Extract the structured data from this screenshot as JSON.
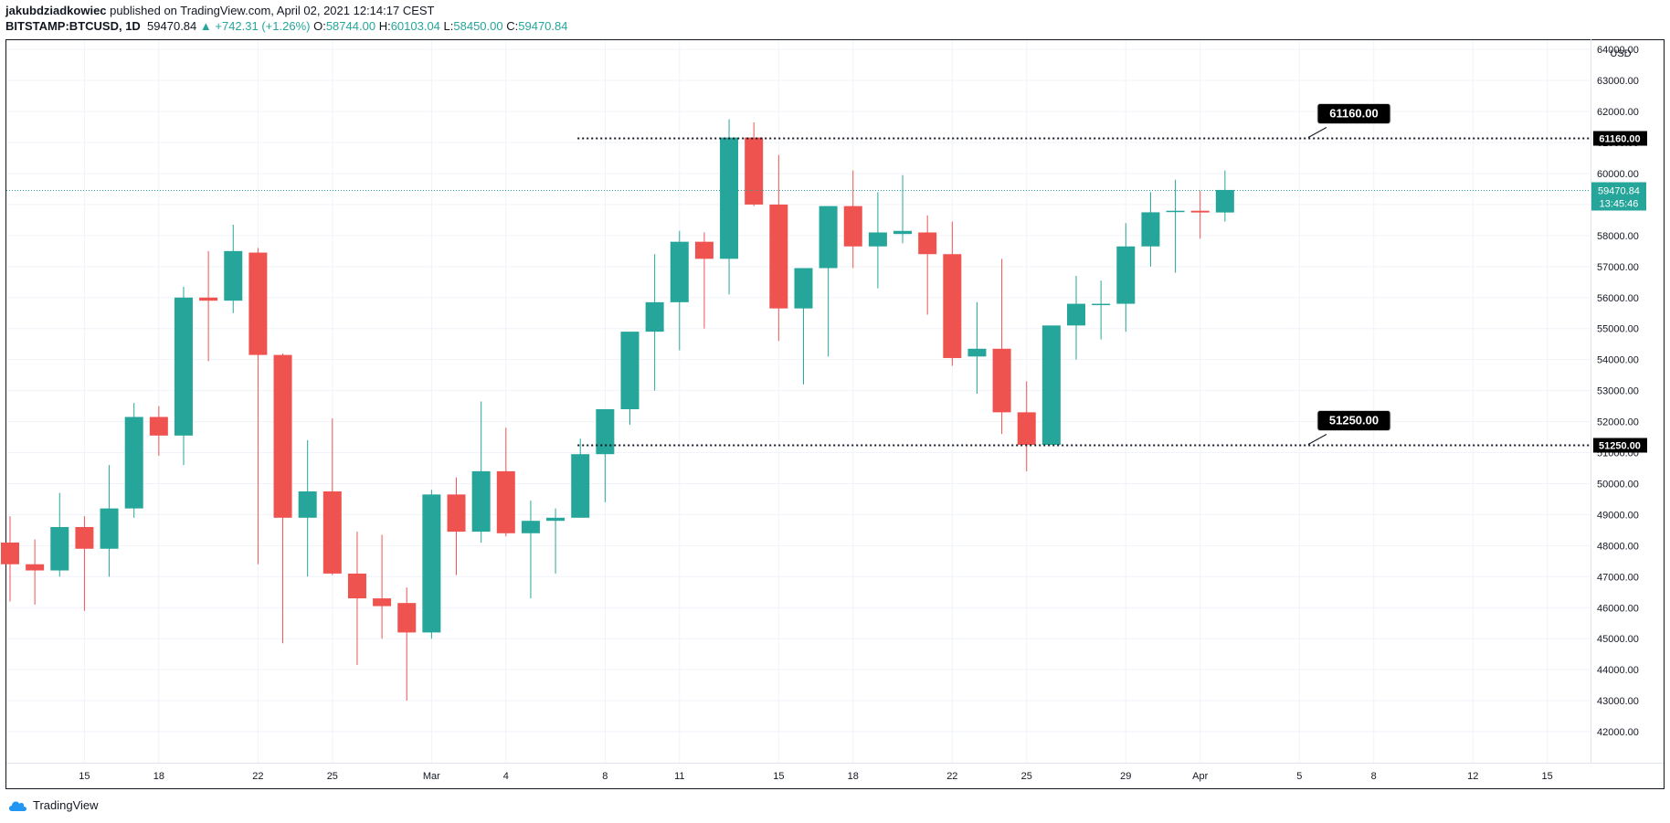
{
  "header": {
    "author": "jakubdziadkowiec",
    "published_text": "published on TradingView.com, April 02, 2021 12:14:17 CEST"
  },
  "ticker": {
    "symbol": "BITSTAMP:BTCUSD, 1D",
    "last": "59470.84",
    "change": "▲ +742.31 (+1.26%)",
    "o_label": "O:",
    "o_value": "58744.00",
    "h_label": "H:",
    "h_value": "60103.04",
    "l_label": "L:",
    "l_value": "58450.00",
    "c_label": "C:",
    "c_value": "59470.84"
  },
  "footer": {
    "brand": "TradingView",
    "logo_icon": "tradingview-cloud-icon"
  },
  "colors": {
    "up": "#26a69a",
    "down": "#ef5350",
    "grid": "#f0f3fa",
    "axis_text": "#131722"
  },
  "chart_data": {
    "type": "candlestick",
    "ylim": [
      41000,
      64300
    ],
    "currency": "USD",
    "y_ticks": [
      42000,
      43000,
      44000,
      45000,
      46000,
      47000,
      48000,
      49000,
      50000,
      51000,
      52000,
      53000,
      54000,
      55000,
      56000,
      57000,
      58000,
      59000,
      60000,
      61000,
      62000,
      63000,
      64000
    ],
    "x_ticks": [
      {
        "label": "15",
        "date": "2021-02-15"
      },
      {
        "label": "18",
        "date": "2021-02-18"
      },
      {
        "label": "22",
        "date": "2021-02-22"
      },
      {
        "label": "25",
        "date": "2021-02-25"
      },
      {
        "label": "Mar",
        "date": "2021-03-01"
      },
      {
        "label": "4",
        "date": "2021-03-04"
      },
      {
        "label": "8",
        "date": "2021-03-08"
      },
      {
        "label": "11",
        "date": "2021-03-11"
      },
      {
        "label": "15",
        "date": "2021-03-15"
      },
      {
        "label": "18",
        "date": "2021-03-18"
      },
      {
        "label": "22",
        "date": "2021-03-22"
      },
      {
        "label": "25",
        "date": "2021-03-25"
      },
      {
        "label": "29",
        "date": "2021-03-29"
      },
      {
        "label": "Apr",
        "date": "2021-04-01"
      },
      {
        "label": "5",
        "date": "2021-04-05"
      },
      {
        "label": "8",
        "date": "2021-04-08"
      },
      {
        "label": "12",
        "date": "2021-04-12"
      },
      {
        "label": "15",
        "date": "2021-04-15"
      }
    ],
    "candles": [
      {
        "date": "2021-02-12",
        "o": 48100,
        "h": 48950,
        "l": 46200,
        "c": 47400
      },
      {
        "date": "2021-02-13",
        "o": 47400,
        "h": 48200,
        "l": 46100,
        "c": 47200
      },
      {
        "date": "2021-02-14",
        "o": 47200,
        "h": 49700,
        "l": 47000,
        "c": 48600
      },
      {
        "date": "2021-02-15",
        "o": 48600,
        "h": 48950,
        "l": 45900,
        "c": 47900
      },
      {
        "date": "2021-02-16",
        "o": 47900,
        "h": 50600,
        "l": 47000,
        "c": 49200
      },
      {
        "date": "2021-02-17",
        "o": 49200,
        "h": 52600,
        "l": 48900,
        "c": 52150
      },
      {
        "date": "2021-02-18",
        "o": 52150,
        "h": 52500,
        "l": 50900,
        "c": 51550
      },
      {
        "date": "2021-02-19",
        "o": 51550,
        "h": 56350,
        "l": 50600,
        "c": 56000
      },
      {
        "date": "2021-02-20",
        "o": 56000,
        "h": 57500,
        "l": 53950,
        "c": 55900
      },
      {
        "date": "2021-02-21",
        "o": 55900,
        "h": 58350,
        "l": 55500,
        "c": 57500
      },
      {
        "date": "2021-02-22",
        "o": 57450,
        "h": 57600,
        "l": 47400,
        "c": 54150
      },
      {
        "date": "2021-02-23",
        "o": 54150,
        "h": 54200,
        "l": 44850,
        "c": 48900
      },
      {
        "date": "2021-02-24",
        "o": 48900,
        "h": 51400,
        "l": 47000,
        "c": 49750
      },
      {
        "date": "2021-02-25",
        "o": 49750,
        "h": 52100,
        "l": 47050,
        "c": 47100
      },
      {
        "date": "2021-02-26",
        "o": 47100,
        "h": 48450,
        "l": 44150,
        "c": 46300
      },
      {
        "date": "2021-02-27",
        "o": 46300,
        "h": 48350,
        "l": 45000,
        "c": 46050
      },
      {
        "date": "2021-02-28",
        "o": 46150,
        "h": 46650,
        "l": 43000,
        "c": 45200
      },
      {
        "date": "2021-03-01",
        "o": 45200,
        "h": 49800,
        "l": 45000,
        "c": 49650
      },
      {
        "date": "2021-03-02",
        "o": 49650,
        "h": 50200,
        "l": 47050,
        "c": 48450
      },
      {
        "date": "2021-03-03",
        "o": 48450,
        "h": 52650,
        "l": 48100,
        "c": 50400
      },
      {
        "date": "2021-03-04",
        "o": 50400,
        "h": 51800,
        "l": 48300,
        "c": 48400
      },
      {
        "date": "2021-03-05",
        "o": 48400,
        "h": 49450,
        "l": 46300,
        "c": 48800
      },
      {
        "date": "2021-03-06",
        "o": 48800,
        "h": 49200,
        "l": 47100,
        "c": 48900
      },
      {
        "date": "2021-03-07",
        "o": 48900,
        "h": 51450,
        "l": 48900,
        "c": 50950
      },
      {
        "date": "2021-03-08",
        "o": 50950,
        "h": 52400,
        "l": 49400,
        "c": 52400
      },
      {
        "date": "2021-03-09",
        "o": 52400,
        "h": 54900,
        "l": 51900,
        "c": 54900
      },
      {
        "date": "2021-03-10",
        "o": 54900,
        "h": 57400,
        "l": 53000,
        "c": 55850
      },
      {
        "date": "2021-03-11",
        "o": 55850,
        "h": 58150,
        "l": 54300,
        "c": 57800
      },
      {
        "date": "2021-03-12",
        "o": 57800,
        "h": 58100,
        "l": 55000,
        "c": 57250
      },
      {
        "date": "2021-03-13",
        "o": 57250,
        "h": 61750,
        "l": 56100,
        "c": 61160
      },
      {
        "date": "2021-03-14",
        "o": 61160,
        "h": 61650,
        "l": 58950,
        "c": 59000
      },
      {
        "date": "2021-03-15",
        "o": 59000,
        "h": 60600,
        "l": 54600,
        "c": 55650
      },
      {
        "date": "2021-03-16",
        "o": 55650,
        "h": 56950,
        "l": 53200,
        "c": 56950
      },
      {
        "date": "2021-03-17",
        "o": 56950,
        "h": 58950,
        "l": 54100,
        "c": 58950
      },
      {
        "date": "2021-03-18",
        "o": 58950,
        "h": 60100,
        "l": 56950,
        "c": 57650
      },
      {
        "date": "2021-03-19",
        "o": 57650,
        "h": 59400,
        "l": 56300,
        "c": 58100
      },
      {
        "date": "2021-03-20",
        "o": 58050,
        "h": 59950,
        "l": 57750,
        "c": 58150
      },
      {
        "date": "2021-03-21",
        "o": 58100,
        "h": 58650,
        "l": 55450,
        "c": 57400
      },
      {
        "date": "2021-03-22",
        "o": 57400,
        "h": 58450,
        "l": 53800,
        "c": 54050
      },
      {
        "date": "2021-03-23",
        "o": 54100,
        "h": 55850,
        "l": 52900,
        "c": 54350
      },
      {
        "date": "2021-03-24",
        "o": 54350,
        "h": 57250,
        "l": 51600,
        "c": 52300
      },
      {
        "date": "2021-03-25",
        "o": 52300,
        "h": 53300,
        "l": 50400,
        "c": 51250
      },
      {
        "date": "2021-03-26",
        "o": 51250,
        "h": 55100,
        "l": 51250,
        "c": 55100
      },
      {
        "date": "2021-03-27",
        "o": 55100,
        "h": 56700,
        "l": 54000,
        "c": 55800
      },
      {
        "date": "2021-03-28",
        "o": 55800,
        "h": 56550,
        "l": 54650,
        "c": 55800
      },
      {
        "date": "2021-03-29",
        "o": 55800,
        "h": 58400,
        "l": 54900,
        "c": 57650
      },
      {
        "date": "2021-03-30",
        "o": 57650,
        "h": 59400,
        "l": 57000,
        "c": 58750
      },
      {
        "date": "2021-03-31",
        "o": 58800,
        "h": 59800,
        "l": 56800,
        "c": 58800
      },
      {
        "date": "2021-04-01",
        "o": 58800,
        "h": 59450,
        "l": 57900,
        "c": 58744
      },
      {
        "date": "2021-04-02",
        "o": 58744,
        "h": 60103.04,
        "l": 58450,
        "c": 59470.84
      }
    ],
    "horizontal_levels": [
      {
        "value": 61160,
        "label": "61160.00",
        "start_date": "2021-03-07"
      },
      {
        "value": 51250,
        "label": "51250.00",
        "start_date": "2021-03-07"
      }
    ],
    "current_price": {
      "value": 59470.84,
      "label": "59470.84",
      "countdown": "13:45:46"
    }
  }
}
